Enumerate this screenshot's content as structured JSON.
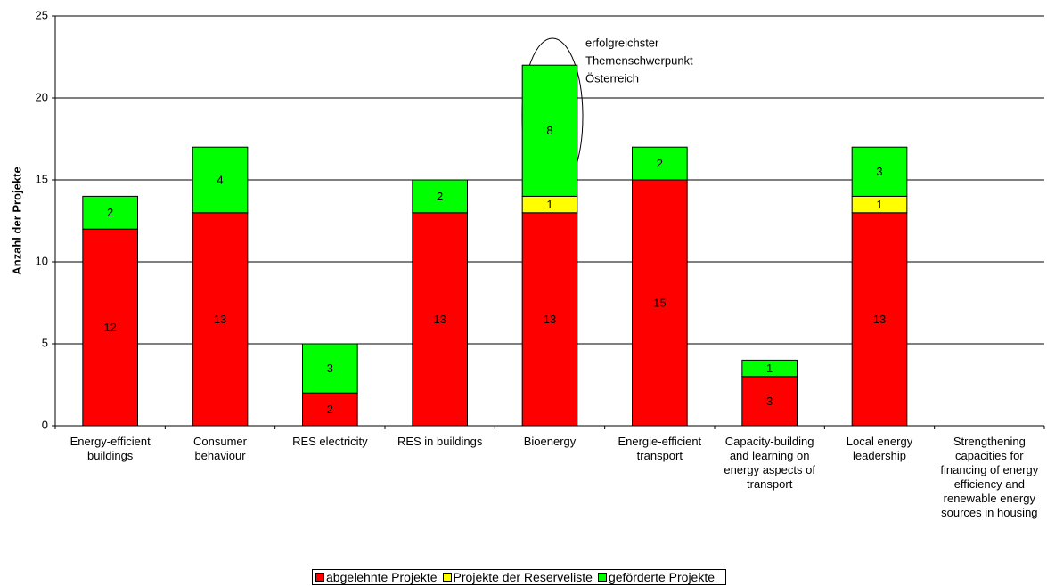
{
  "chart_data": {
    "type": "stacked_bar",
    "y_label": "Anzahl der Projekte",
    "annotation": [
      "erfolgreichster",
      "Themenschwerpunkt",
      "Österreich"
    ],
    "categories": [
      "Energy-efficient buildings",
      "Consumer behaviour",
      "RES electricity",
      "RES in buildings",
      "Bioenergy",
      "Energie-efficient transport",
      "Capacity-building and learning on energy aspects of transport",
      "Local energy leadership",
      "Strengthening capacities for financing of energy efficiency and renewable energy sources in housing"
    ],
    "series": [
      {
        "name": "abgelehnte Projekte",
        "color": "#ff0000",
        "values": [
          12,
          13,
          2,
          13,
          13,
          15,
          3,
          13,
          null
        ]
      },
      {
        "name": "Projekte der Reserveliste",
        "color": "#ffff00",
        "values": [
          null,
          null,
          null,
          null,
          1,
          null,
          null,
          1,
          null
        ]
      },
      {
        "name": "geförderte Projekte",
        "color": "#00ff00",
        "values": [
          2,
          4,
          3,
          2,
          8,
          2,
          1,
          3,
          null
        ]
      }
    ],
    "ylim": [
      0,
      25
    ],
    "yticks": [
      0,
      5,
      10,
      15,
      20,
      25
    ],
    "grid": true
  }
}
